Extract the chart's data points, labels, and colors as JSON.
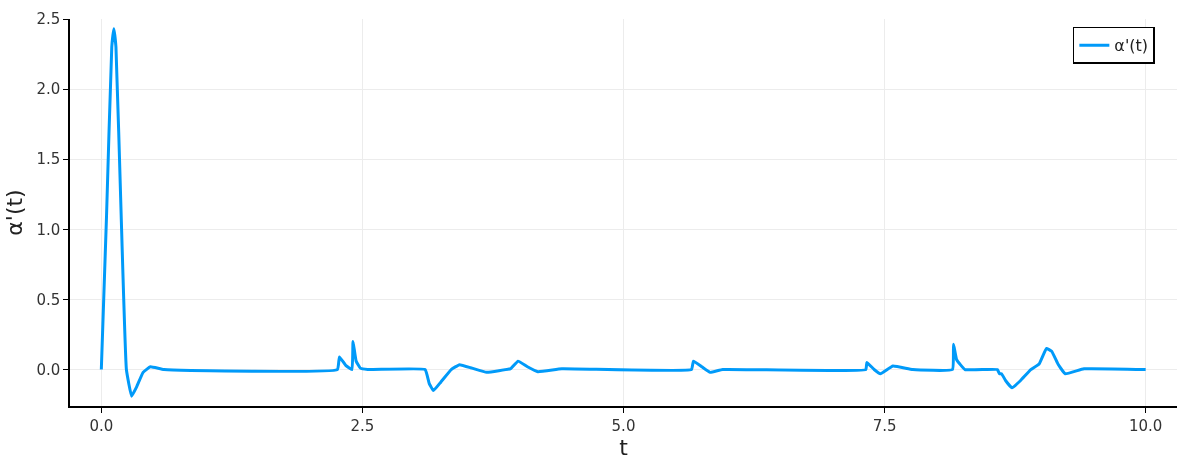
{
  "chart_data": {
    "type": "line",
    "xlabel": "t",
    "ylabel": "α'(t)",
    "xlim": [
      -0.3,
      10.3
    ],
    "ylim": [
      -0.26,
      2.5
    ],
    "xticks": [
      {
        "value": 0,
        "label": "0.0"
      },
      {
        "value": 2.5,
        "label": "2.5"
      },
      {
        "value": 5,
        "label": "5.0"
      },
      {
        "value": 7.5,
        "label": "7.5"
      },
      {
        "value": 10,
        "label": "10.0"
      }
    ],
    "yticks": [
      {
        "value": 0,
        "label": "0.0"
      },
      {
        "value": 0.5,
        "label": "0.5"
      },
      {
        "value": 1,
        "label": "1.0"
      },
      {
        "value": 1.5,
        "label": "1.5"
      },
      {
        "value": 2,
        "label": "2.0"
      },
      {
        "value": 2.5,
        "label": "2.5"
      }
    ],
    "grid": true,
    "legend": "top right",
    "line_style": "solid",
    "marker": "none",
    "series": [
      {
        "name": "α'(t)",
        "color": "#009af9",
        "x": [
          0,
          0.05,
          0.1,
          0.12,
          0.14,
          0.19,
          0.24,
          0.29,
          0.34,
          0.4,
          0.47,
          0.6,
          2.26,
          2.28,
          2.34,
          2.4,
          2.41,
          2.44,
          2.48,
          2.55,
          3.1,
          3.14,
          3.18,
          3.25,
          3.35,
          3.43,
          3.55,
          3.69,
          3.92,
          3.99,
          4.08,
          4.18,
          4.41,
          5.65,
          5.67,
          5.75,
          5.83,
          5.95,
          7.32,
          7.33,
          7.4,
          7.46,
          7.58,
          7.77,
          8.15,
          8.16,
          8.19,
          8.27,
          8.58,
          8.6,
          8.62,
          8.66,
          8.72,
          8.8,
          8.9,
          8.98,
          9.05,
          9.1,
          9.16,
          9.23,
          9.41,
          10
        ],
        "values": [
          0,
          1.1,
          2.3,
          2.43,
          2.3,
          1.1,
          0,
          -0.19,
          -0.12,
          -0.02,
          0.02,
          0,
          0,
          0.09,
          0.03,
          0,
          0.2,
          0.06,
          0.01,
          0,
          0,
          -0.1,
          -0.15,
          -0.09,
          0.0,
          0.035,
          0.01,
          -0.02,
          0.007,
          0.06,
          0.02,
          -0.015,
          0.005,
          0,
          0.06,
          0.02,
          -0.02,
          0,
          0,
          0.05,
          0.0,
          -0.03,
          0.025,
          0,
          0,
          0.18,
          0.07,
          0,
          0,
          -0.03,
          -0.03,
          -0.08,
          -0.13,
          -0.08,
          0.0,
          0.04,
          0.15,
          0.13,
          0.04,
          -0.03,
          0.005,
          0
        ]
      }
    ]
  }
}
